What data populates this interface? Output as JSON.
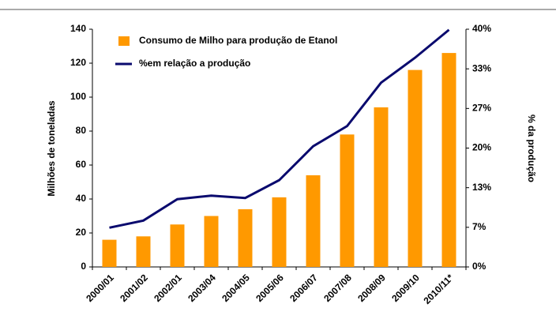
{
  "chart_data": {
    "type": "bar",
    "categories": [
      "2000/01",
      "2001/02",
      "2002/01",
      "2003/04",
      "2004/05",
      "2005/06",
      "2006/07",
      "2007/08",
      "2008/09",
      "2009/10",
      "2010/11*"
    ],
    "series": [
      {
        "name": "Consumo de Milho para produção de Etanol",
        "type": "bar",
        "color": "#ff9900",
        "values": [
          16,
          18,
          25,
          30,
          34,
          41,
          54,
          78,
          94,
          116,
          126
        ]
      },
      {
        "name": "%em relação a  produção",
        "type": "line",
        "axis": "y2",
        "color": "#0a0a6e",
        "values": [
          6.6,
          7.8,
          11.4,
          12.0,
          11.6,
          14.6,
          20.3,
          23.7,
          31.0,
          35.2,
          39.9
        ]
      }
    ],
    "ylabel": "Milhões de toneladas",
    "y2label": "% da produção",
    "ylim": [
      0,
      140
    ],
    "yticks": [
      0,
      20,
      40,
      60,
      80,
      100,
      120,
      140
    ],
    "y2lim": [
      0,
      40
    ],
    "y2ticks": [
      {
        "value": 0,
        "label": "0%"
      },
      {
        "value": 6.667,
        "label": "7%"
      },
      {
        "value": 13.333,
        "label": "13%"
      },
      {
        "value": 20,
        "label": "20%"
      },
      {
        "value": 26.667,
        "label": "27%"
      },
      {
        "value": 33.333,
        "label": "33%"
      },
      {
        "value": 40,
        "label": "40%"
      }
    ],
    "legend": "top-left",
    "grid": false
  }
}
